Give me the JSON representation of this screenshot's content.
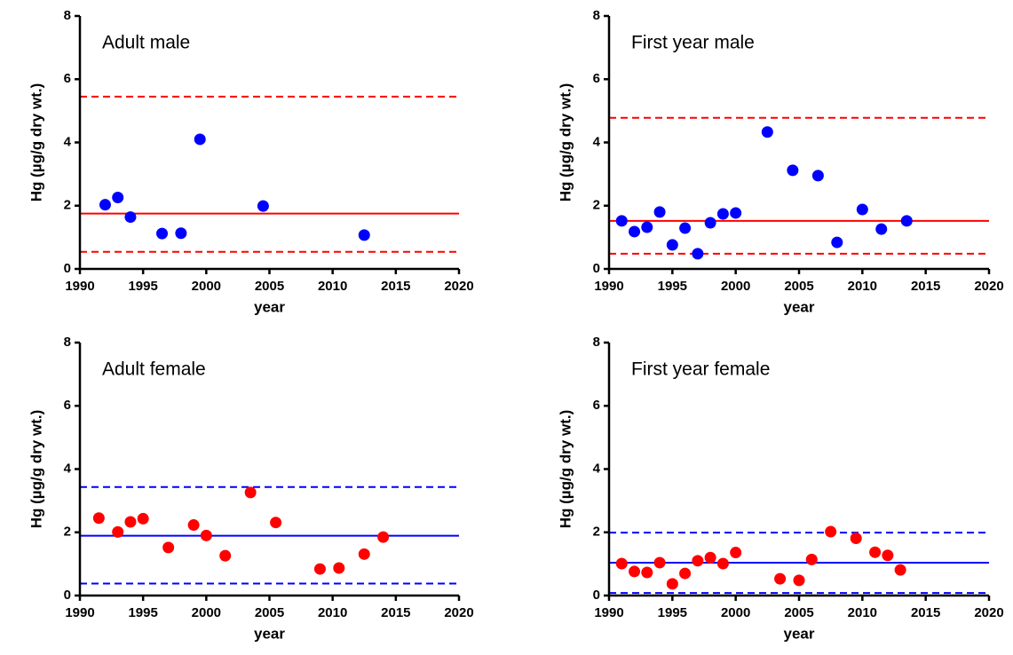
{
  "chart_data": [
    {
      "type": "scatter",
      "title": "Adult male",
      "x_label": "year",
      "y_label": "Hg (µg/g dry wt.)",
      "xlim": [
        1990,
        2020
      ],
      "ylim": [
        0,
        8
      ],
      "xticks": [
        1990,
        1995,
        2000,
        2005,
        2010,
        2015,
        2020
      ],
      "yticks": [
        0,
        2,
        4,
        6,
        8
      ],
      "color": "#0000ff",
      "x": [
        1992,
        1993,
        1994,
        1996.5,
        1998,
        1999.5,
        2004.5,
        2012.5
      ],
      "values": [
        2.03,
        2.26,
        1.64,
        1.12,
        1.13,
        4.1,
        1.99,
        1.07
      ],
      "line_color": "#ff0000",
      "hlines": [
        {
          "value": 5.45,
          "dashed": true
        },
        {
          "value": 1.75,
          "dashed": false
        },
        {
          "value": 0.54,
          "dashed": true
        }
      ]
    },
    {
      "type": "scatter",
      "title": "First year male",
      "x_label": "year",
      "y_label": "Hg (µg/g dry wt.)",
      "xlim": [
        1990,
        2020
      ],
      "ylim": [
        0,
        8
      ],
      "xticks": [
        1990,
        1995,
        2000,
        2005,
        2010,
        2015,
        2020
      ],
      "yticks": [
        0,
        2,
        4,
        6,
        8
      ],
      "color": "#0000ff",
      "x": [
        1991,
        1992,
        1993,
        1994,
        1995,
        1996,
        1997,
        1998,
        1999,
        2000,
        2002.5,
        2004.5,
        2006.5,
        2008,
        2010,
        2011.5,
        2013.5
      ],
      "values": [
        1.52,
        1.18,
        1.32,
        1.8,
        0.76,
        1.29,
        0.48,
        1.46,
        1.74,
        1.77,
        4.33,
        3.12,
        2.95,
        0.84,
        1.88,
        1.26,
        1.52
      ],
      "line_color": "#ff0000",
      "hlines": [
        {
          "value": 4.78,
          "dashed": true
        },
        {
          "value": 1.52,
          "dashed": false
        },
        {
          "value": 0.48,
          "dashed": true
        }
      ]
    },
    {
      "type": "scatter",
      "title": "Adult female",
      "x_label": "year",
      "y_label": "Hg (µg/g dry wt.)",
      "xlim": [
        1990,
        2020
      ],
      "ylim": [
        0,
        8
      ],
      "xticks": [
        1990,
        1995,
        2000,
        2005,
        2010,
        2015,
        2020
      ],
      "yticks": [
        0,
        2,
        4,
        6,
        8
      ],
      "color": "#ff0000",
      "x": [
        1991.5,
        1993,
        1994,
        1995,
        1997,
        1999,
        2000,
        2001.5,
        2003.5,
        2005.5,
        2009,
        2010.5,
        2012.5,
        2014
      ],
      "values": [
        2.45,
        2.01,
        2.33,
        2.43,
        1.52,
        2.23,
        1.9,
        1.26,
        3.26,
        2.31,
        0.84,
        0.87,
        1.31,
        1.85
      ],
      "line_color": "#0000ff",
      "hlines": [
        {
          "value": 3.43,
          "dashed": true
        },
        {
          "value": 1.89,
          "dashed": false
        },
        {
          "value": 0.38,
          "dashed": true
        }
      ]
    },
    {
      "type": "scatter",
      "title": "First year female",
      "x_label": "year",
      "y_label": "Hg (µg/g dry wt.)",
      "xlim": [
        1990,
        2020
      ],
      "ylim": [
        0,
        8
      ],
      "xticks": [
        1990,
        1995,
        2000,
        2005,
        2010,
        2015,
        2020
      ],
      "yticks": [
        0,
        2,
        4,
        6,
        8
      ],
      "color": "#ff0000",
      "x": [
        1991,
        1992,
        1993,
        1994,
        1995,
        1996,
        1997,
        1998,
        1999,
        2000,
        2003.5,
        2005,
        2006,
        2007.5,
        2009.5,
        2011,
        2012,
        2013
      ],
      "values": [
        1.01,
        0.76,
        0.73,
        1.04,
        0.37,
        0.7,
        1.1,
        1.2,
        1.01,
        1.36,
        0.53,
        0.48,
        1.14,
        2.02,
        1.81,
        1.37,
        1.27,
        0.81
      ],
      "line_color": "#0000ff",
      "hlines": [
        {
          "value": 1.99,
          "dashed": true
        },
        {
          "value": 1.04,
          "dashed": false
        },
        {
          "value": 0.08,
          "dashed": true
        }
      ]
    }
  ]
}
